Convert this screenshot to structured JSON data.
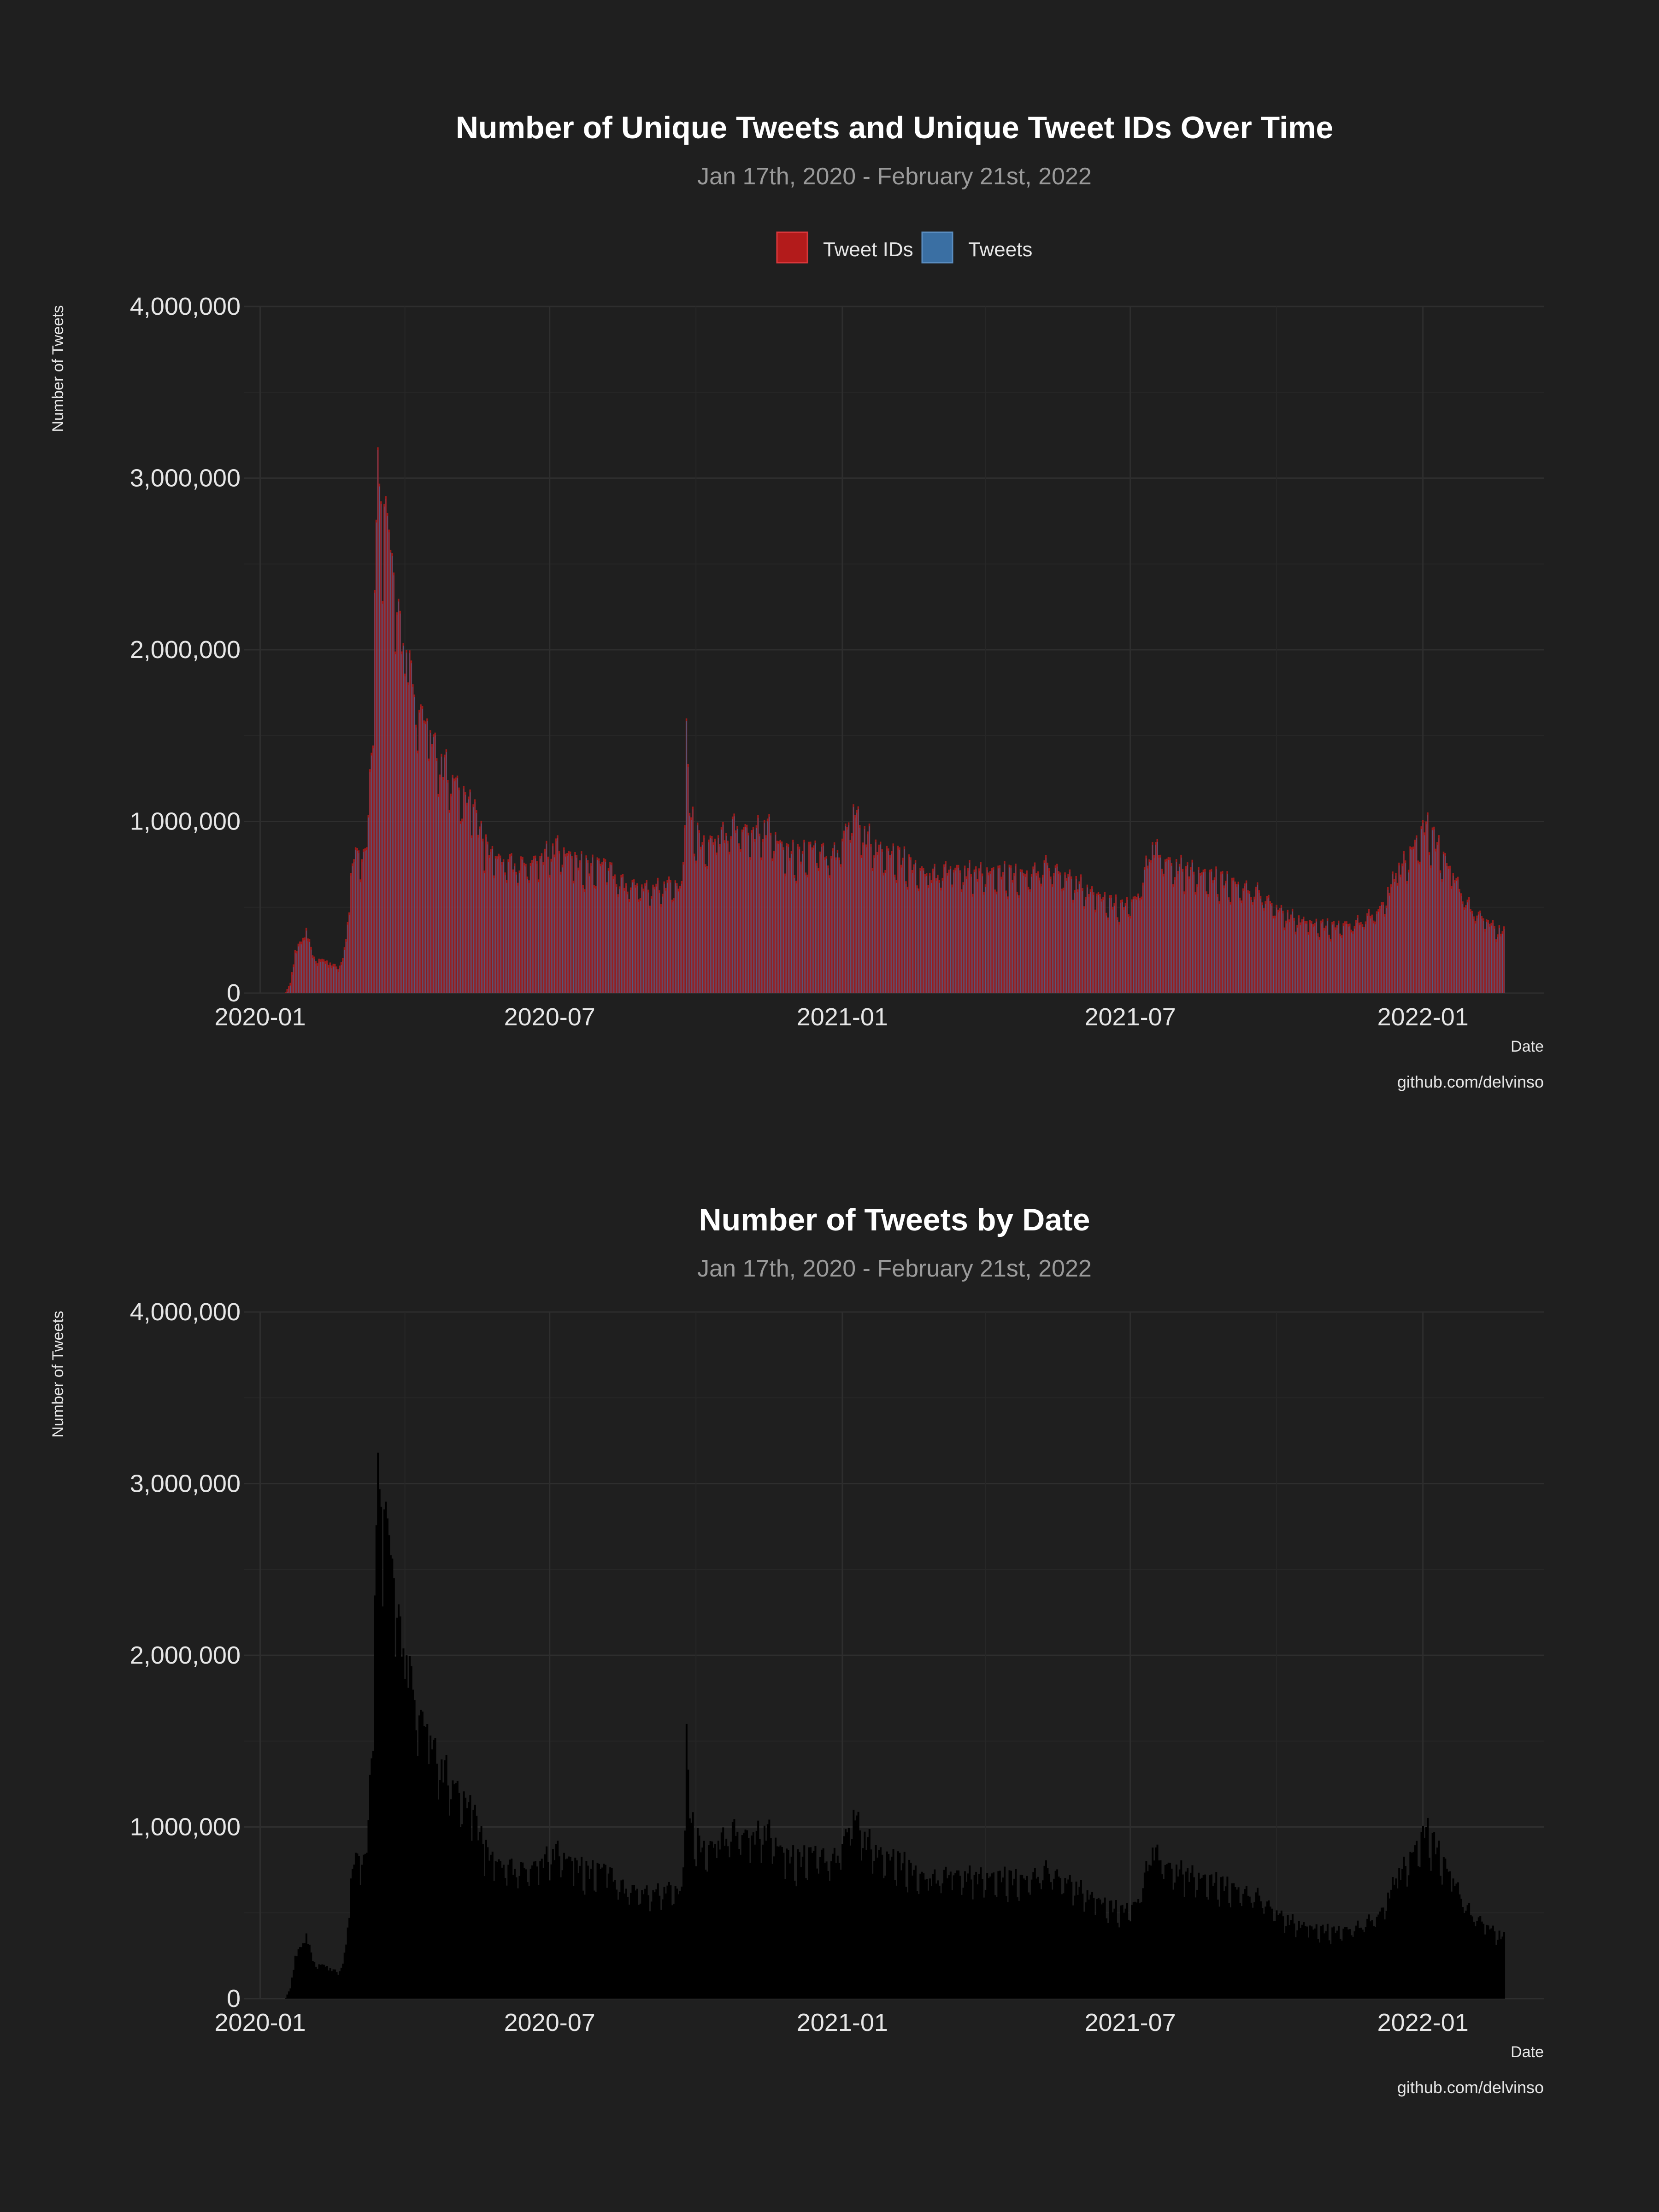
{
  "colors": {
    "background": "#1f1f1f",
    "tweet_ids": "#b31b1b",
    "tweets": "#3a6fa3",
    "black_bars": "#000000",
    "grid": "#2e2e2e"
  },
  "chart_data": [
    {
      "type": "bar",
      "title": "Number of Unique Tweets and Unique Tweet IDs Over Time",
      "subtitle": "Jan 17th, 2020 - February 21st, 2022",
      "xlabel": "Date",
      "ylabel": "Number of Tweets",
      "caption": "github.com/delvinso",
      "x_ticks": [
        "2020-01",
        "2020-07",
        "2021-01",
        "2021-07",
        "2022-01"
      ],
      "y_ticks": [
        "0",
        "1,000,000",
        "2,000,000",
        "3,000,000",
        "4,000,000"
      ],
      "ylim": [
        0,
        4000000
      ],
      "xlim": [
        "2019-12-22",
        "2022-03-18"
      ],
      "legend": {
        "position": "top",
        "entries": [
          {
            "name": "Tweet IDs",
            "color": "#b31b1b"
          },
          {
            "name": "Tweets",
            "color": "#3a6fa3"
          }
        ]
      },
      "grid": true,
      "date_start": "2020-01-17",
      "date_end": "2022-02-21",
      "series": [
        {
          "name": "Tweet IDs",
          "color": "#b31b1b",
          "source": "daily_counts"
        },
        {
          "name": "Tweets",
          "color": "#3a6fa3",
          "source": "daily_counts"
        }
      ],
      "daily_counts": [
        {
          "x": "2020-01-17",
          "y": 5000
        },
        {
          "x": "2020-01-20",
          "y": 60000
        },
        {
          "x": "2020-01-23",
          "y": 250000
        },
        {
          "x": "2020-01-27",
          "y": 300000
        },
        {
          "x": "2020-01-30",
          "y": 380000
        },
        {
          "x": "2020-02-03",
          "y": 220000
        },
        {
          "x": "2020-02-07",
          "y": 200000
        },
        {
          "x": "2020-02-12",
          "y": 190000
        },
        {
          "x": "2020-02-17",
          "y": 160000
        },
        {
          "x": "2020-02-21",
          "y": 180000
        },
        {
          "x": "2020-02-24",
          "y": 300000
        },
        {
          "x": "2020-02-27",
          "y": 700000
        },
        {
          "x": "2020-03-01",
          "y": 850000
        },
        {
          "x": "2020-03-05",
          "y": 780000
        },
        {
          "x": "2020-03-08",
          "y": 850000
        },
        {
          "x": "2020-03-11",
          "y": 1400000
        },
        {
          "x": "2020-03-13",
          "y": 2200000
        },
        {
          "x": "2020-03-15",
          "y": 3180000
        },
        {
          "x": "2020-03-17",
          "y": 2700000
        },
        {
          "x": "2020-03-19",
          "y": 2850000
        },
        {
          "x": "2020-03-22",
          "y": 2700000
        },
        {
          "x": "2020-03-25",
          "y": 2450000
        },
        {
          "x": "2020-03-29",
          "y": 2150000
        },
        {
          "x": "2020-04-02",
          "y": 2000000
        },
        {
          "x": "2020-04-06",
          "y": 1800000
        },
        {
          "x": "2020-04-10",
          "y": 1650000
        },
        {
          "x": "2020-04-15",
          "y": 1600000
        },
        {
          "x": "2020-04-20",
          "y": 1450000
        },
        {
          "x": "2020-04-26",
          "y": 1350000
        },
        {
          "x": "2020-05-02",
          "y": 1250000
        },
        {
          "x": "2020-05-08",
          "y": 1180000
        },
        {
          "x": "2020-05-14",
          "y": 1100000
        },
        {
          "x": "2020-05-20",
          "y": 900000
        },
        {
          "x": "2020-05-28",
          "y": 800000
        },
        {
          "x": "2020-06-05",
          "y": 780000
        },
        {
          "x": "2020-06-15",
          "y": 760000
        },
        {
          "x": "2020-06-25",
          "y": 800000
        },
        {
          "x": "2020-07-05",
          "y": 880000
        },
        {
          "x": "2020-07-15",
          "y": 800000
        },
        {
          "x": "2020-07-25",
          "y": 750000
        },
        {
          "x": "2020-08-05",
          "y": 780000
        },
        {
          "x": "2020-08-15",
          "y": 660000
        },
        {
          "x": "2020-08-25",
          "y": 640000
        },
        {
          "x": "2020-09-05",
          "y": 620000
        },
        {
          "x": "2020-09-15",
          "y": 660000
        },
        {
          "x": "2020-09-22",
          "y": 620000
        },
        {
          "x": "2020-09-25",
          "y": 1520000
        },
        {
          "x": "2020-09-27",
          "y": 1050000
        },
        {
          "x": "2020-10-05",
          "y": 880000
        },
        {
          "x": "2020-10-15",
          "y": 920000
        },
        {
          "x": "2020-10-25",
          "y": 1000000
        },
        {
          "x": "2020-11-05",
          "y": 950000
        },
        {
          "x": "2020-11-15",
          "y": 1000000
        },
        {
          "x": "2020-11-25",
          "y": 850000
        },
        {
          "x": "2020-12-05",
          "y": 820000
        },
        {
          "x": "2020-12-15",
          "y": 880000
        },
        {
          "x": "2020-12-25",
          "y": 800000
        },
        {
          "x": "2021-01-01",
          "y": 900000
        },
        {
          "x": "2021-01-08",
          "y": 1100000
        },
        {
          "x": "2021-01-15",
          "y": 950000
        },
        {
          "x": "2021-01-25",
          "y": 850000
        },
        {
          "x": "2021-02-05",
          "y": 820000
        },
        {
          "x": "2021-02-15",
          "y": 750000
        },
        {
          "x": "2021-02-25",
          "y": 700000
        },
        {
          "x": "2021-03-10",
          "y": 740000
        },
        {
          "x": "2021-03-25",
          "y": 720000
        },
        {
          "x": "2021-04-10",
          "y": 720000
        },
        {
          "x": "2021-04-25",
          "y": 700000
        },
        {
          "x": "2021-05-10",
          "y": 760000
        },
        {
          "x": "2021-05-25",
          "y": 680000
        },
        {
          "x": "2021-06-10",
          "y": 580000
        },
        {
          "x": "2021-06-25",
          "y": 520000
        },
        {
          "x": "2021-07-05",
          "y": 560000
        },
        {
          "x": "2021-07-15",
          "y": 880000
        },
        {
          "x": "2021-07-25",
          "y": 780000
        },
        {
          "x": "2021-08-05",
          "y": 740000
        },
        {
          "x": "2021-08-20",
          "y": 700000
        },
        {
          "x": "2021-09-05",
          "y": 650000
        },
        {
          "x": "2021-09-20",
          "y": 600000
        },
        {
          "x": "2021-10-05",
          "y": 480000
        },
        {
          "x": "2021-10-20",
          "y": 420000
        },
        {
          "x": "2021-11-05",
          "y": 400000
        },
        {
          "x": "2021-11-20",
          "y": 420000
        },
        {
          "x": "2021-12-05",
          "y": 500000
        },
        {
          "x": "2021-12-15",
          "y": 700000
        },
        {
          "x": "2021-12-25",
          "y": 850000
        },
        {
          "x": "2022-01-03",
          "y": 1000000
        },
        {
          "x": "2022-01-10",
          "y": 880000
        },
        {
          "x": "2022-01-20",
          "y": 700000
        },
        {
          "x": "2022-01-30",
          "y": 520000
        },
        {
          "x": "2022-02-10",
          "y": 430000
        },
        {
          "x": "2022-02-21",
          "y": 360000
        }
      ]
    },
    {
      "type": "bar",
      "title": "Number of Tweets by Date",
      "subtitle": "Jan 17th, 2020 - February 21st, 2022",
      "xlabel": "Date",
      "ylabel": "Number of Tweets",
      "caption": "github.com/delvinso",
      "x_ticks": [
        "2020-01",
        "2020-07",
        "2021-01",
        "2021-07",
        "2022-01"
      ],
      "y_ticks": [
        "0",
        "1,000,000",
        "2,000,000",
        "3,000,000",
        "4,000,000"
      ],
      "ylim": [
        0,
        4000000
      ],
      "xlim": [
        "2019-12-22",
        "2022-03-18"
      ],
      "grid": true,
      "date_start": "2020-01-17",
      "date_end": "2022-02-21",
      "series": [
        {
          "color": "#000000",
          "source": "daily_counts"
        }
      ]
    }
  ]
}
